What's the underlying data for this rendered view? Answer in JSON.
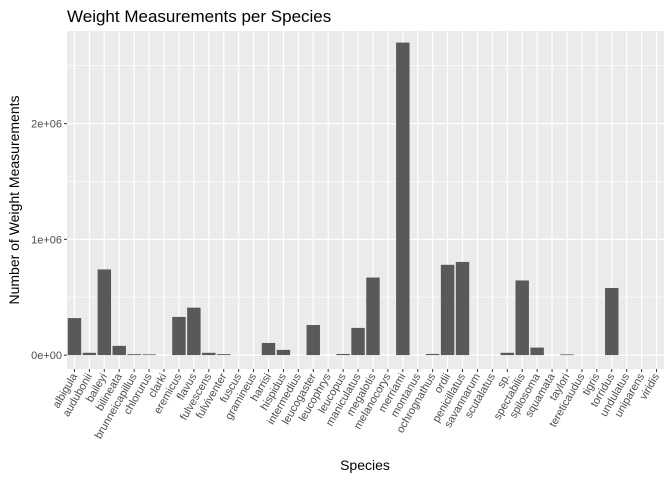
{
  "chart_data": {
    "type": "bar",
    "title": "Weight Measurements per Species",
    "xlabel": "Species",
    "ylabel": "Number of Weight Measurements",
    "ylim": [
      -120000,
      2800000
    ],
    "yticks": [
      0,
      1000000,
      2000000
    ],
    "ytick_labels": [
      "0e+00",
      "1e+06",
      "2e+06"
    ],
    "grid": true,
    "bar_color": "#595959",
    "panel_color": "#ebebeb",
    "grid_color": "#ffffff",
    "categories": [
      "albigula",
      "audubonii",
      "baileyi",
      "bilineata",
      "brunneicapillus",
      "chlorurus",
      "clarki",
      "eremicus",
      "flavus",
      "fulvescens",
      "fulviventer",
      "fuscus",
      "gramineus",
      "harrisi",
      "hispidus",
      "intermedius",
      "leucogaster",
      "leucophrys",
      "leucopus",
      "maniculatus",
      "megalotis",
      "melanocorys",
      "merriami",
      "montanus",
      "ochrognathus",
      "ordii",
      "penicillatus",
      "savannarum",
      "scutalatus",
      "sp.",
      "spectabilis",
      "spilosoma",
      "squamata",
      "taylori",
      "tereticaudus",
      "tigris",
      "torridus",
      "undulatus",
      "uniparens",
      "viridis"
    ],
    "values": [
      320000,
      20000,
      740000,
      80000,
      8000,
      6000,
      0,
      330000,
      410000,
      20000,
      8000,
      0,
      0,
      105000,
      45000,
      0,
      260000,
      0,
      10000,
      235000,
      670000,
      0,
      2700000,
      0,
      10000,
      780000,
      805000,
      0,
      0,
      20000,
      645000,
      65000,
      0,
      6000,
      0,
      0,
      580000,
      0,
      0,
      0
    ]
  }
}
